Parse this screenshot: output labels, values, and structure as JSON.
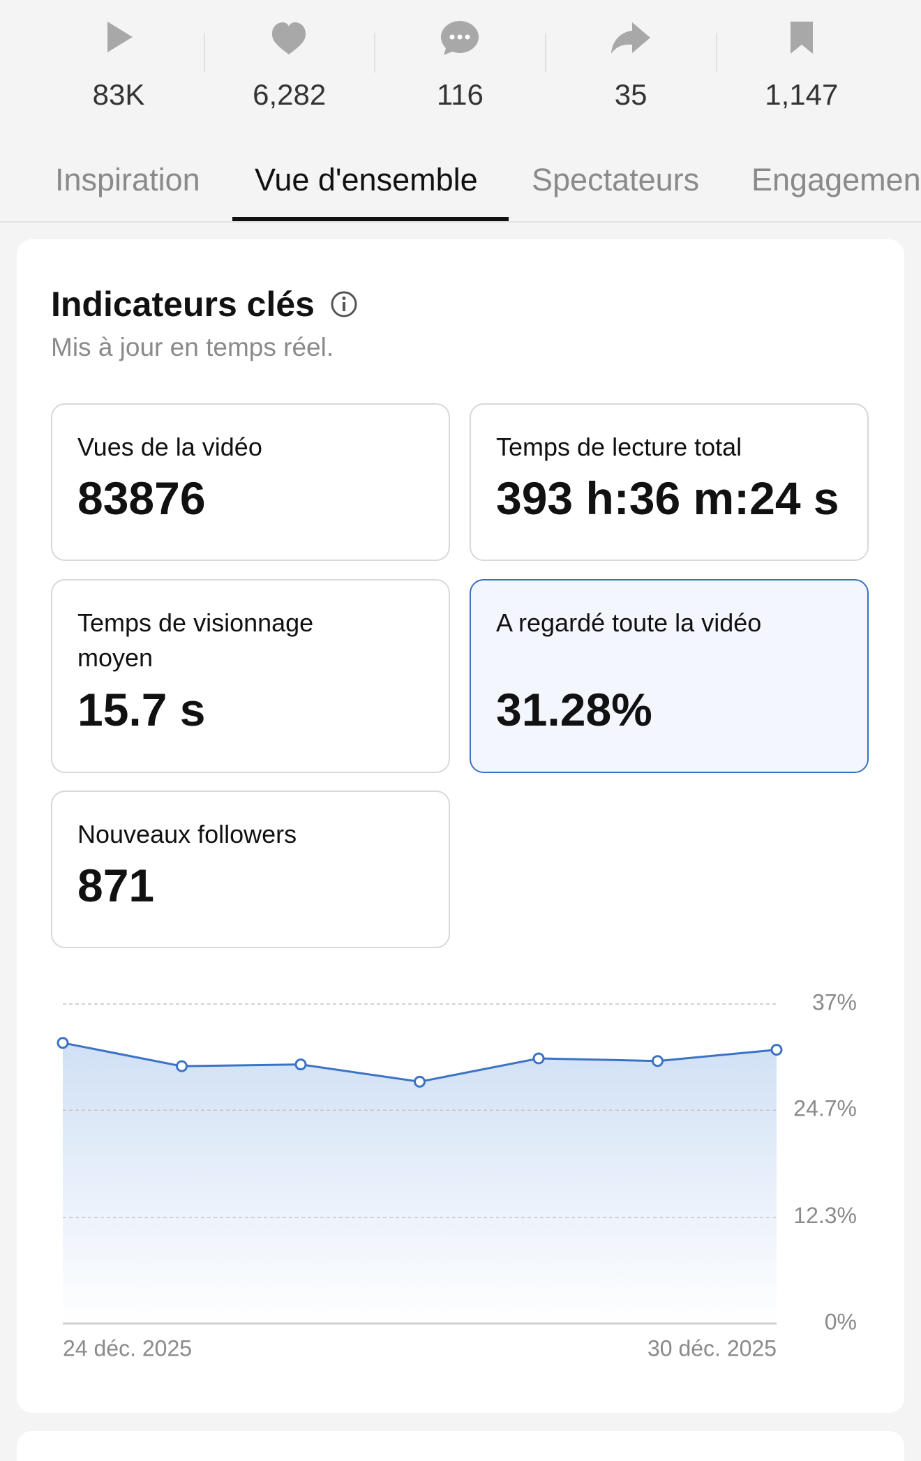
{
  "stats": [
    "83K",
    "6,282",
    "116",
    "35",
    "1,147"
  ],
  "tabs": [
    "Inspiration",
    "Vue d'ensemble",
    "Spectateurs",
    "Engagement"
  ],
  "card": {
    "title": "Indicateurs clés",
    "subtitle": "Mis à jour en temps réel.",
    "metrics": [
      {
        "label": "Vues de la vidéo",
        "value": "83876"
      },
      {
        "label": "Temps de lecture total",
        "value": "393 h:36 m:24 s"
      },
      {
        "label": "Temps de visionnage moyen",
        "value": "15.7 s"
      },
      {
        "label": "A regardé toute la vidéo",
        "value": "31.28%"
      },
      {
        "label": "Nouveaux followers",
        "value": "871"
      }
    ]
  },
  "chart_data": {
    "type": "line",
    "categories": [
      "24 déc. 2025",
      null,
      null,
      null,
      null,
      null,
      "30 déc. 2025"
    ],
    "values": [
      32.5,
      29.8,
      30.0,
      28.0,
      30.7,
      30.4,
      31.7
    ],
    "color": "#3b73c4",
    "ylim": [
      0,
      37
    ],
    "yticks": [
      {
        "value": 0,
        "label": "0%"
      },
      {
        "value": 12.3,
        "label": "12.3%"
      },
      {
        "value": 24.7,
        "label": "24.7%"
      },
      {
        "value": 37,
        "label": "37%"
      }
    ],
    "grid": true
  }
}
